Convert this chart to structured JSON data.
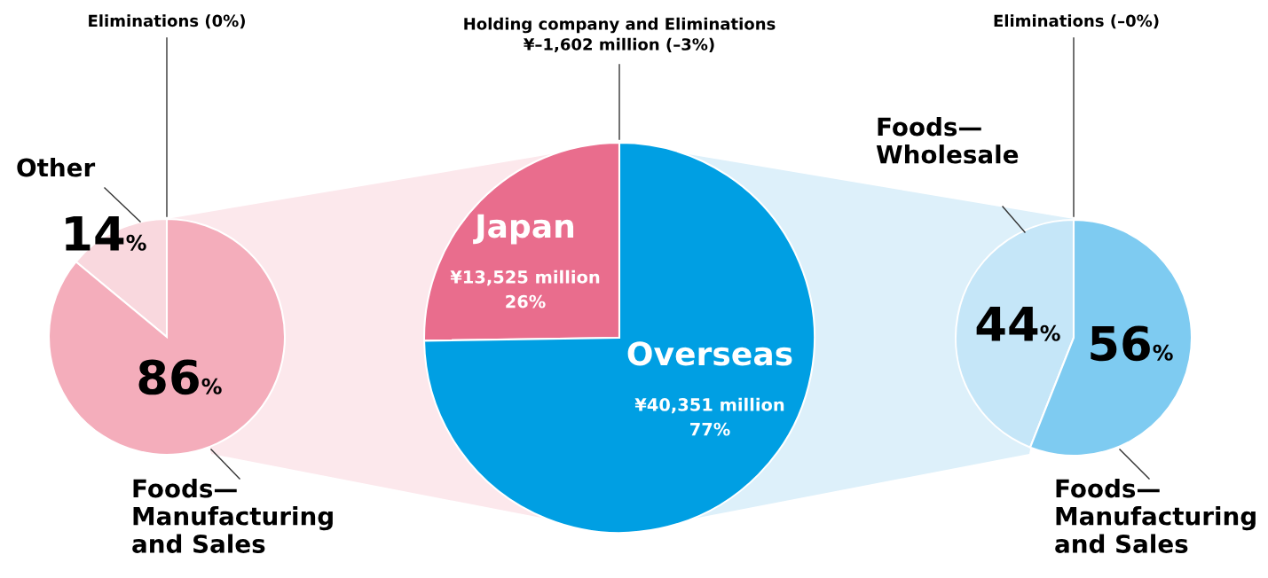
{
  "chart_data": [
    {
      "type": "pie",
      "categories": [
        "Other",
        "Foods—\nManufacturing\nand Sales",
        "Eliminations"
      ],
      "values": [
        14,
        86,
        0
      ],
      "colors": [
        "#f9d8de",
        "#f4adbb",
        null
      ],
      "value_labels": [
        "14%",
        "86%",
        "(0%)"
      ]
    },
    {
      "type": "pie",
      "categories": [
        "Japan",
        "Overseas"
      ],
      "values": [
        26,
        77
      ],
      "colors": [
        "#e96d8d",
        "#009fe3"
      ],
      "value_labels": [
        "¥13,525 million\n26%",
        "¥40,351 million\n77%"
      ],
      "annotations": [
        "Holding company and Eliminations\n¥–1,602 million (–3%)"
      ]
    },
    {
      "type": "pie",
      "categories": [
        "Foods—\nWholesale",
        "Foods—\nManufacturing\nand Sales",
        "Eliminations"
      ],
      "values": [
        44,
        56,
        0
      ],
      "colors": [
        "#c5e6f8",
        "#7ecbf1",
        null
      ],
      "value_labels": [
        "44%",
        "56%",
        "(–0%)"
      ]
    }
  ]
}
